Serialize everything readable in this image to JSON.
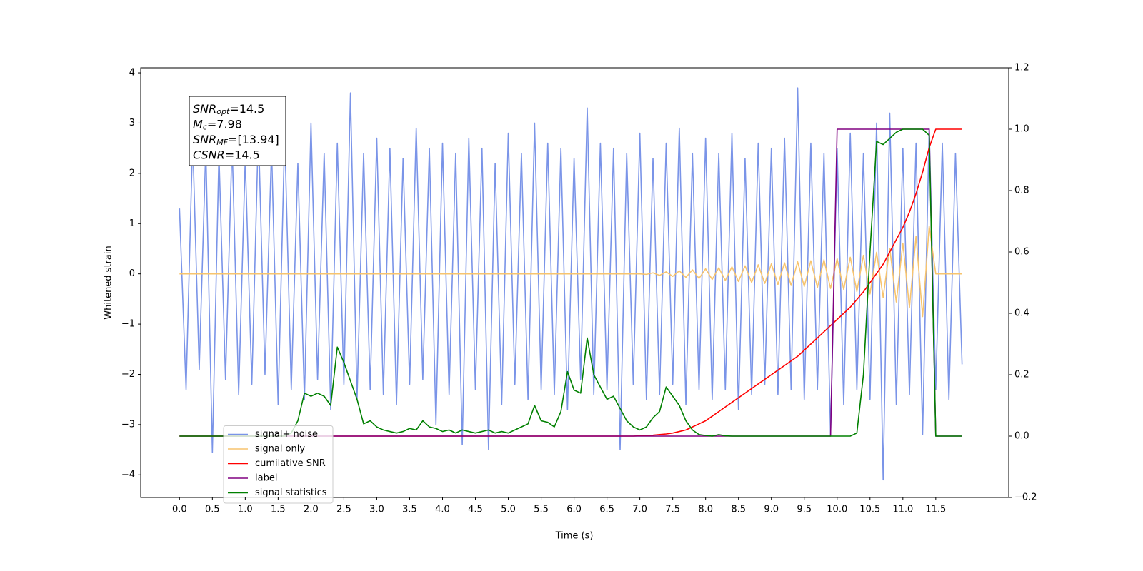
{
  "chart_data": {
    "type": "line",
    "xlabel": "Time (s)",
    "ylabel": "Whitened strain",
    "xlim": [
      -0.59,
      12.61
    ],
    "ylim": [
      -4.45,
      4.1
    ],
    "y2lim": [
      -0.2,
      1.2
    ],
    "xticks": [
      {
        "value": 0,
        "label": "0.0"
      },
      0.5,
      {
        "value": 1,
        "label": "1.0"
      },
      1.5,
      {
        "value": 2,
        "label": "2.0"
      },
      2.5,
      {
        "value": 3,
        "label": "3.0"
      },
      3.5,
      {
        "value": 4,
        "label": "4.0"
      },
      4.5,
      {
        "value": 5,
        "label": "5.0"
      },
      5.5,
      {
        "value": 6,
        "label": "6.0"
      },
      6.5,
      {
        "value": 7,
        "label": "7.0"
      },
      7.5,
      {
        "value": 8,
        "label": "8.0"
      },
      8.5,
      {
        "value": 9,
        "label": "9.0"
      },
      9.5,
      {
        "value": 10,
        "label": "10.0"
      },
      10.5,
      {
        "value": 11,
        "label": "11.0"
      },
      11.5
    ],
    "yticks": [
      {
        "value": -4,
        "label": "−4"
      },
      {
        "value": -3,
        "label": "−3"
      },
      {
        "value": -2,
        "label": "−2"
      },
      {
        "value": -1,
        "label": "−1"
      },
      0,
      1,
      2,
      3,
      4
    ],
    "y2ticks": [
      {
        "value": -0.2,
        "label": "−0.2"
      },
      {
        "value": 0,
        "label": "0.0"
      },
      0.2,
      0.4,
      0.6,
      0.8,
      {
        "value": 1,
        "label": "1.0"
      },
      1.2
    ],
    "legend_loc": "lower left",
    "annotation": [
      {
        "symbol": "SNR",
        "subscript": "opt",
        "text": "=14.5"
      },
      {
        "symbol": "M",
        "subscript": "c",
        "text": "=7.98"
      },
      {
        "symbol": "SNR",
        "subscript": "MF",
        "text": "=[13.94]"
      },
      {
        "symbol": "CSNR",
        "text": "=14.5"
      }
    ],
    "x": [
      0,
      0.1,
      0.2,
      0.3,
      0.4,
      0.5,
      0.6,
      0.7,
      0.8,
      0.9,
      1,
      1.1,
      1.2,
      1.3,
      1.4,
      1.5,
      1.6,
      1.7,
      1.8,
      1.9,
      2,
      2.1,
      2.2,
      2.3,
      2.4,
      2.5,
      2.6,
      2.7,
      2.8,
      2.9,
      3,
      3.1,
      3.2,
      3.3,
      3.4,
      3.5,
      3.6,
      3.7,
      3.8,
      3.9,
      4,
      4.1,
      4.2,
      4.3,
      4.4,
      4.5,
      4.6,
      4.7,
      4.8,
      4.9,
      5,
      5.1,
      5.2,
      5.3,
      5.4,
      5.5,
      5.6,
      5.7,
      5.8,
      5.9,
      6,
      6.1,
      6.2,
      6.3,
      6.4,
      6.5,
      6.6,
      6.7,
      6.8,
      6.9,
      7,
      7.1,
      7.2,
      7.3,
      7.4,
      7.5,
      7.6,
      7.7,
      7.8,
      7.9,
      8,
      8.1,
      8.2,
      8.3,
      8.4,
      8.5,
      8.6,
      8.7,
      8.8,
      8.9,
      9,
      9.1,
      9.2,
      9.3,
      9.4,
      9.5,
      9.6,
      9.7,
      9.8,
      9.9,
      10,
      10.1,
      10.2,
      10.3,
      10.4,
      10.5,
      10.6,
      10.7,
      10.8,
      10.9,
      11,
      11.1,
      11.2,
      11.3,
      11.4,
      11.5,
      11.6,
      11.7,
      11.8,
      11.9
    ],
    "series": [
      {
        "name": "signal+ noise",
        "color": "#7a94e8",
        "values": [
          1.3,
          -2.3,
          2.7,
          -1.9,
          2.5,
          -3.55,
          2.4,
          -2.1,
          2.6,
          -2.4,
          2.3,
          -2.2,
          2.9,
          -2.0,
          2.5,
          -2.6,
          2.8,
          -2.3,
          2.2,
          -2.5,
          3.0,
          -2.1,
          2.4,
          -2.7,
          2.6,
          -2.2,
          3.6,
          -2.5,
          2.4,
          -2.3,
          2.7,
          -2.4,
          2.5,
          -2.6,
          2.3,
          -2.2,
          2.9,
          -2.1,
          2.5,
          -3.0,
          2.6,
          -2.4,
          2.4,
          -3.4,
          2.7,
          -2.3,
          2.5,
          -3.5,
          2.2,
          -2.6,
          2.8,
          -2.2,
          2.4,
          -2.5,
          3.0,
          -2.3,
          2.6,
          -2.4,
          2.5,
          -2.7,
          2.3,
          -2.1,
          3.3,
          -2.4,
          2.6,
          -2.3,
          2.5,
          -3.5,
          2.4,
          -2.2,
          2.8,
          -2.5,
          2.3,
          -2.4,
          2.6,
          -2.2,
          2.9,
          -2.6,
          2.4,
          -2.3,
          2.7,
          -2.5,
          2.4,
          -2.3,
          2.8,
          -2.7,
          2.3,
          -2.4,
          2.6,
          -2.2,
          2.5,
          -2.4,
          2.7,
          -2.3,
          3.7,
          -2.5,
          2.6,
          -2.3,
          2.4,
          -3.2,
          2.5,
          -2.6,
          2.8,
          -2.3,
          2.4,
          -2.5,
          3.0,
          -4.1,
          3.2,
          -2.6,
          2.5,
          -2.4,
          2.6,
          -3.2,
          2.9,
          -2.3,
          2.6,
          -2.5,
          2.4,
          -1.8
        ]
      },
      {
        "name": "signal only",
        "color": "#f7c46e",
        "values": [
          0,
          0,
          0,
          0,
          0,
          0,
          0,
          0,
          0,
          0,
          0,
          0,
          0,
          0,
          0,
          0,
          0,
          0,
          0,
          0,
          0,
          0,
          0,
          0,
          0,
          0,
          0,
          0,
          0,
          0,
          0,
          0,
          0,
          0,
          0,
          0,
          0,
          0,
          0,
          0,
          0,
          0,
          0,
          0,
          0,
          0,
          0,
          0,
          0,
          0,
          0,
          0,
          0,
          0,
          0,
          0,
          0,
          0,
          0,
          0,
          0,
          0,
          0,
          0,
          0,
          0,
          0,
          0,
          0,
          0,
          0,
          -0.01,
          0.02,
          -0.03,
          0.04,
          -0.05,
          0.06,
          -0.07,
          0.08,
          -0.09,
          0.1,
          -0.11,
          0.12,
          -0.13,
          0.14,
          -0.15,
          0.16,
          -0.17,
          0.18,
          -0.19,
          0.2,
          -0.21,
          0.22,
          -0.23,
          0.24,
          -0.25,
          0.26,
          -0.27,
          0.28,
          -0.29,
          0.3,
          -0.31,
          0.33,
          -0.35,
          0.37,
          -0.4,
          0.43,
          -0.47,
          0.51,
          -0.56,
          0.61,
          -0.67,
          0.75,
          -0.85,
          0.95,
          0,
          0,
          0,
          0,
          0
        ]
      },
      {
        "name": "cumilative SNR",
        "color": "#ff0000",
        "axis": "y2",
        "values": [
          0,
          0,
          0,
          0,
          0,
          0,
          0,
          0,
          0,
          0,
          0,
          0,
          0,
          0,
          0,
          0,
          0,
          0,
          0,
          0,
          0,
          0,
          0,
          0,
          0,
          0,
          0,
          0,
          0,
          0,
          0,
          0,
          0,
          0,
          0,
          0,
          0,
          0,
          0,
          0,
          0,
          0,
          0,
          0,
          0,
          0,
          0,
          0,
          0,
          0,
          0,
          0,
          0,
          0,
          0,
          0,
          0,
          0,
          0,
          0,
          0,
          0,
          0,
          0,
          0,
          0,
          0,
          0,
          0,
          0,
          0.001,
          0.002,
          0.003,
          0.005,
          0.007,
          0.01,
          0.015,
          0.02,
          0.03,
          0.04,
          0.05,
          0.065,
          0.08,
          0.095,
          0.11,
          0.125,
          0.14,
          0.155,
          0.17,
          0.185,
          0.2,
          0.215,
          0.23,
          0.245,
          0.26,
          0.28,
          0.3,
          0.32,
          0.34,
          0.36,
          0.38,
          0.4,
          0.42,
          0.445,
          0.47,
          0.5,
          0.53,
          0.56,
          0.6,
          0.64,
          0.68,
          0.73,
          0.79,
          0.86,
          0.94,
          1,
          1,
          1,
          1,
          1
        ]
      },
      {
        "name": "label",
        "color": "#800080",
        "axis": "y2",
        "values": [
          0,
          0,
          0,
          0,
          0,
          0,
          0,
          0,
          0,
          0,
          0,
          0,
          0,
          0,
          0,
          0,
          0,
          0,
          0,
          0,
          0,
          0,
          0,
          0,
          0,
          0,
          0,
          0,
          0,
          0,
          0,
          0,
          0,
          0,
          0,
          0,
          0,
          0,
          0,
          0,
          0,
          0,
          0,
          0,
          0,
          0,
          0,
          0,
          0,
          0,
          0,
          0,
          0,
          0,
          0,
          0,
          0,
          0,
          0,
          0,
          0,
          0,
          0,
          0,
          0,
          0,
          0,
          0,
          0,
          0,
          0,
          0,
          0,
          0,
          0,
          0,
          0,
          0,
          0,
          0,
          0,
          0,
          0,
          0,
          0,
          0,
          0,
          0,
          0,
          0,
          0,
          0,
          0,
          0,
          0,
          0,
          0,
          0,
          0,
          0,
          1,
          1,
          1,
          1,
          1,
          1,
          1,
          1,
          1,
          1,
          1,
          1,
          1,
          1,
          1,
          0,
          0,
          0,
          0,
          0
        ]
      },
      {
        "name": "signal statistics",
        "color": "#008000",
        "axis": "y2",
        "values": [
          0,
          0,
          0,
          0,
          0,
          0,
          0,
          0,
          0,
          0,
          0,
          0,
          0,
          0,
          0,
          0,
          0,
          0.01,
          0.05,
          0.14,
          0.13,
          0.14,
          0.13,
          0.1,
          0.29,
          0.24,
          0.18,
          0.12,
          0.04,
          0.05,
          0.03,
          0.02,
          0.015,
          0.01,
          0.015,
          0.025,
          0.02,
          0.05,
          0.03,
          0.025,
          0.015,
          0.02,
          0.01,
          0.02,
          0.015,
          0.01,
          0.015,
          0.02,
          0.01,
          0.015,
          0.01,
          0.02,
          0.03,
          0.04,
          0.1,
          0.05,
          0.045,
          0.03,
          0.08,
          0.21,
          0.15,
          0.14,
          0.32,
          0.2,
          0.16,
          0.12,
          0.13,
          0.09,
          0.05,
          0.03,
          0.02,
          0.03,
          0.06,
          0.08,
          0.16,
          0.13,
          0.1,
          0.05,
          0.02,
          0.005,
          0.002,
          0,
          0.005,
          0.001,
          0,
          0,
          0,
          0,
          0,
          0,
          0,
          0,
          0,
          0,
          0,
          0,
          0,
          0,
          0,
          0,
          0,
          0,
          0,
          0.01,
          0.2,
          0.6,
          0.96,
          0.95,
          0.97,
          0.99,
          1,
          1,
          1,
          1,
          0.98,
          0,
          0,
          0,
          0,
          0
        ]
      }
    ]
  }
}
